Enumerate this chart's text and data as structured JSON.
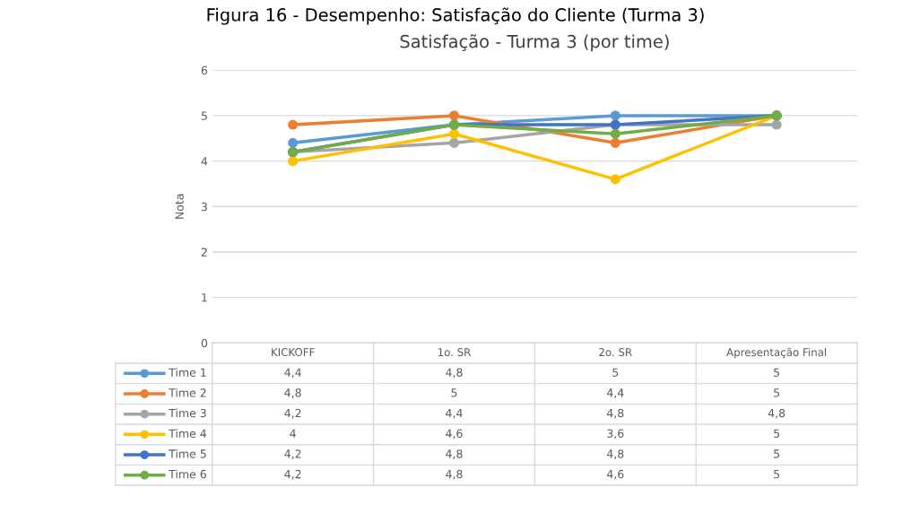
{
  "chart_data": {
    "type": "line",
    "title": "Satisfação - Turma 3 (por time)",
    "ylabel": "Nota",
    "annotations": [
      "Figura 16 - Desempenho: Satisfação do Cliente (Turma 3)"
    ],
    "categories": [
      "KICKOFF",
      "1o. SR",
      "2o. SR",
      "Apresentação Final"
    ],
    "series": [
      {
        "name": "Time 1",
        "color": "#5b9bd5",
        "values": [
          4.4,
          4.8,
          5,
          5
        ],
        "value_labels": [
          "4,4",
          "4,8",
          "5",
          "5"
        ]
      },
      {
        "name": "Time 2",
        "color": "#ed7d31",
        "values": [
          4.8,
          5,
          4.4,
          5
        ],
        "value_labels": [
          "4,8",
          "5",
          "4,4",
          "5"
        ]
      },
      {
        "name": "Time 3",
        "color": "#a5a5a5",
        "values": [
          4.2,
          4.4,
          4.8,
          4.8
        ],
        "value_labels": [
          "4,2",
          "4,4",
          "4,8",
          "4,8"
        ]
      },
      {
        "name": "Time 4",
        "color": "#ffc000",
        "values": [
          4,
          4.6,
          3.6,
          5
        ],
        "value_labels": [
          "4",
          "4,6",
          "3,6",
          "5"
        ]
      },
      {
        "name": "Time 5",
        "color": "#4472c4",
        "values": [
          4.2,
          4.8,
          4.8,
          5
        ],
        "value_labels": [
          "4,2",
          "4,8",
          "4,8",
          "5"
        ]
      },
      {
        "name": "Time 6",
        "color": "#70ad47",
        "values": [
          4.2,
          4.8,
          4.6,
          5
        ],
        "value_labels": [
          "4,2",
          "4,8",
          "4,6",
          "5"
        ]
      }
    ],
    "ylim": [
      0,
      6
    ],
    "yticks": [
      0,
      1,
      2,
      3,
      4,
      5,
      6
    ],
    "grid": "y",
    "legend": "bottom",
    "marker": "circle",
    "line_style": "solid"
  }
}
